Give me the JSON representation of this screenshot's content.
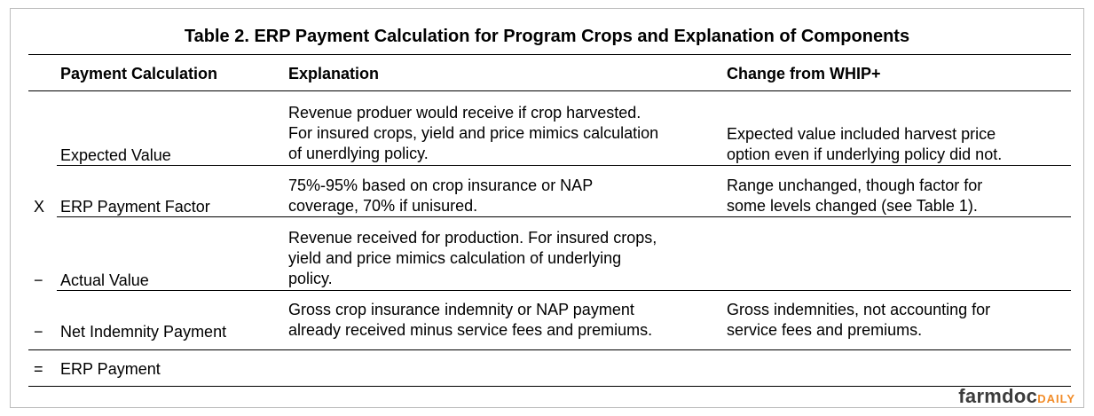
{
  "table": {
    "title": "Table 2. ERP Payment Calculation for Program Crops and Explanation of Components",
    "headers": {
      "calculation": "Payment Calculation",
      "explanation": "Explanation",
      "change": "Change from WHIP+"
    },
    "rows": [
      {
        "operator": "",
        "calculation": "Expected Value",
        "explanation": "Revenue produer would receive if crop harvested.\nFor insured crops, yield and price mimics calculation\nof unerdlying policy.",
        "change": "Expected value included harvest price\noption even if underlying policy did not."
      },
      {
        "operator": "X",
        "calculation": "ERP Payment Factor",
        "explanation": "75%-95% based on crop insurance or NAP\ncoverage, 70% if unisured.",
        "change": "Range unchanged, though factor for\nsome levels changed (see Table 1)."
      },
      {
        "operator": "−",
        "calculation": "Actual Value",
        "explanation": "Revenue received for production. For insured crops,\nyield and price mimics calculation of underlying\npolicy.",
        "change": ""
      },
      {
        "operator": "−",
        "calculation": "Net Indemnity Payment",
        "explanation": "Gross crop insurance indemnity or NAP payment\nalready received minus service fees and premiums.",
        "change": "Gross indemnities, not accounting for\nservice fees and premiums."
      },
      {
        "operator": "=",
        "calculation": "ERP Payment",
        "explanation": "",
        "change": ""
      }
    ]
  },
  "branding": {
    "name": "farmdoc",
    "suffix": "DAILY",
    "name_color": "#3c3c3c",
    "suffix_color": "#f28c28"
  }
}
